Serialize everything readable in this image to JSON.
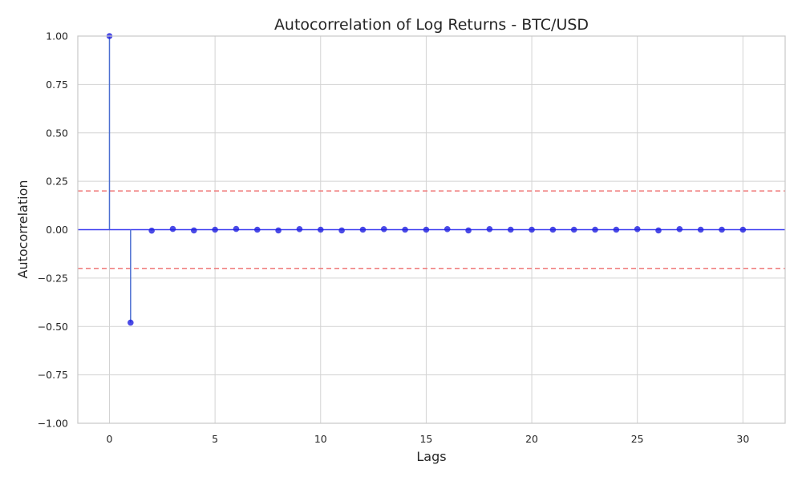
{
  "chart_data": {
    "type": "scatter",
    "title": "Autocorrelation of Log Returns - BTC/USD",
    "xlabel": "Lags",
    "ylabel": "Autocorrelation",
    "xlim": [
      -1.5,
      32
    ],
    "ylim": [
      -1.0,
      1.0
    ],
    "x_ticks": [
      0,
      5,
      10,
      15,
      20,
      25,
      30
    ],
    "y_ticks": [
      1.0,
      0.75,
      0.5,
      0.25,
      0.0,
      -0.25,
      -0.5,
      -0.75,
      -1.0
    ],
    "y_tick_labels": [
      "1.00",
      "0.75",
      "0.50",
      "0.25",
      "0.00",
      "−0.25",
      "−0.50",
      "−0.75",
      "−1.00"
    ],
    "x_tick_labels": [
      "0",
      "5",
      "10",
      "15",
      "20",
      "25",
      "30"
    ],
    "grid": true,
    "confidence_bounds": [
      0.2,
      -0.2
    ],
    "colors": {
      "stem": "#4c6fd1",
      "marker": "#1f1fe0",
      "zero_line": "#3a3af0",
      "bounds": "#f08080"
    },
    "series": [
      {
        "lags": [
          0,
          1,
          2,
          3,
          4,
          5,
          6,
          7,
          8,
          9,
          10,
          11,
          12,
          13,
          14,
          15,
          16,
          17,
          18,
          19,
          20,
          21,
          22,
          23,
          24,
          25,
          26,
          27,
          28,
          29,
          30
        ],
        "values": [
          1.0,
          -0.48,
          -0.005,
          0.004,
          -0.004,
          0.0,
          0.004,
          0.0,
          -0.004,
          0.003,
          0.0,
          -0.004,
          0.0,
          0.003,
          0.0,
          0.0,
          0.003,
          -0.004,
          0.003,
          0.0,
          0.0,
          0.0,
          0.0,
          0.0,
          0.0,
          0.003,
          -0.004,
          0.003,
          0.0,
          0.0,
          0.0
        ]
      }
    ]
  }
}
